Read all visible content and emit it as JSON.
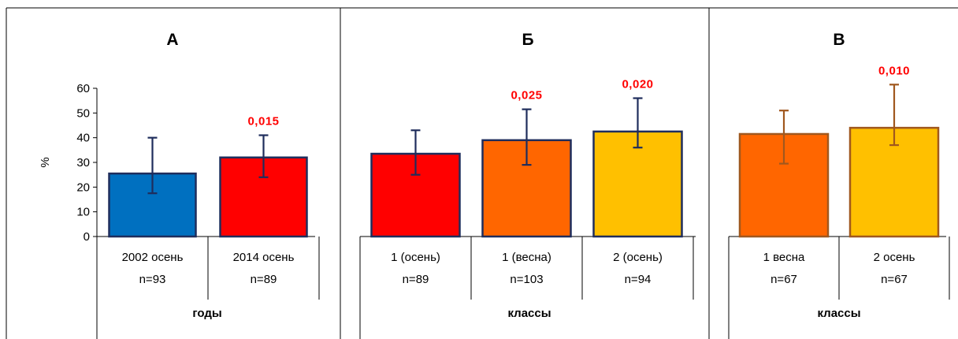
{
  "chart_data": [
    {
      "type": "bar",
      "title": "А",
      "ylabel": "%",
      "xlabel": "годы",
      "ylim": [
        0,
        60
      ],
      "yticks": [
        "0",
        "10",
        "20",
        "30",
        "40",
        "50",
        "60"
      ],
      "categories": [
        "2002 осень",
        "2014 осень"
      ],
      "n_labels": [
        "n=93",
        "n=89"
      ],
      "values": [
        25.5,
        32
      ],
      "error_low": [
        17.5,
        24
      ],
      "error_high": [
        40,
        41
      ],
      "annotations": [
        "",
        "0,015"
      ],
      "bar_colors": [
        "#0070C0",
        "#FF0000"
      ],
      "edge_colors": [
        "#1F2D5C",
        "#1F2D5C"
      ],
      "error_color": "#1F2D5C"
    },
    {
      "type": "bar",
      "title": "Б",
      "xlabel": "классы",
      "ylim": [
        0,
        60
      ],
      "categories": [
        "1 (осень)",
        "1 (весна)",
        "2 (осень)"
      ],
      "n_labels": [
        "n=89",
        "n=103",
        "n=94"
      ],
      "values": [
        33.5,
        39,
        42.5
      ],
      "error_low": [
        25,
        29,
        36
      ],
      "error_high": [
        43,
        51.5,
        56
      ],
      "annotations": [
        "",
        "0,025",
        "0,020"
      ],
      "bar_colors": [
        "#FF0000",
        "#FF6600",
        "#FFC000"
      ],
      "edge_colors": [
        "#1F2D5C",
        "#1F2D5C",
        "#1F2D5C"
      ],
      "error_color": "#1F2D5C"
    },
    {
      "type": "bar",
      "title": "В",
      "xlabel": "классы",
      "ylim": [
        0,
        60
      ],
      "categories": [
        "1 весна",
        "2 осень"
      ],
      "n_labels": [
        "n=67",
        "n=67"
      ],
      "values": [
        41.5,
        44
      ],
      "error_low": [
        29.5,
        37
      ],
      "error_high": [
        51,
        61.5
      ],
      "annotations": [
        "",
        "0,010"
      ],
      "bar_colors": [
        "#FF6600",
        "#FFC000"
      ],
      "edge_colors": [
        "#A0581E",
        "#A0581E"
      ],
      "error_color": "#A0581E"
    }
  ],
  "annotation_color": "#FF0000"
}
